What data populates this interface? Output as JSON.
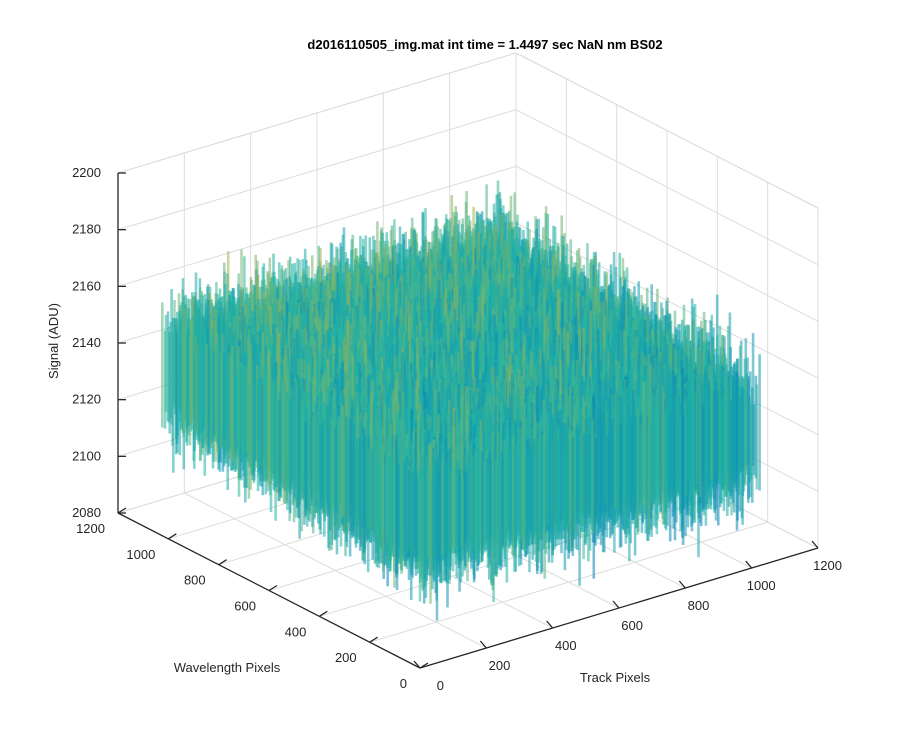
{
  "chart_data": {
    "type": "surface",
    "title": "d2016110505_img.mat int time = 1.4497 sec  NaN nm BS02",
    "xlabel": "Track Pixels",
    "ylabel": "Wavelength Pixels",
    "zlabel": "Signal (ADU)",
    "xlim": [
      0,
      1200
    ],
    "ylim": [
      0,
      1200
    ],
    "zlim": [
      2080,
      2200
    ],
    "xticks": [
      0,
      200,
      400,
      600,
      800,
      1000,
      1200
    ],
    "yticks": [
      0,
      200,
      400,
      600,
      800,
      1000,
      1200
    ],
    "zticks": [
      2080,
      2100,
      2120,
      2140,
      2160,
      2180,
      2200
    ],
    "grid": true,
    "surface_extent": {
      "x": [
        0,
        1024
      ],
      "y": [
        0,
        1024
      ]
    },
    "signal_mean": 2133,
    "signal_range": [
      2085,
      2188
    ],
    "colors": {
      "low": "#0072BD",
      "mid": "#21B5A6",
      "high": "#EDB120"
    }
  }
}
